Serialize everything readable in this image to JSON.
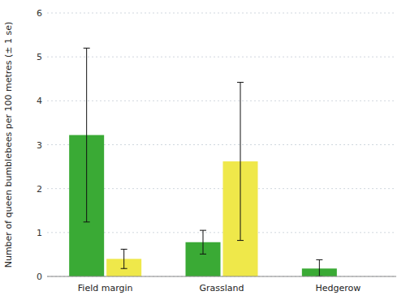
{
  "chart_data": {
    "type": "bar",
    "ylabel": "Number of queen bumblebees per 100 metres (± 1 se)",
    "categories": [
      "Field margin",
      "Grassland",
      "Hedgerow"
    ],
    "series": [
      {
        "color": "#3aaa35",
        "values": [
          3.22,
          0.78,
          0.18
        ],
        "errors_up": [
          1.98,
          0.27,
          0.2
        ],
        "errors_down": [
          1.98,
          0.27,
          0.18
        ]
      },
      {
        "color": "#efe84a",
        "values": [
          0.4,
          2.62,
          0.0
        ],
        "errors_up": [
          0.22,
          1.8,
          0.0
        ],
        "errors_down": [
          0.22,
          1.8,
          0.0
        ]
      }
    ],
    "ylim": [
      0,
      6
    ],
    "yticks": [
      0,
      1,
      2,
      3,
      4,
      5,
      6
    ],
    "grid": true
  }
}
